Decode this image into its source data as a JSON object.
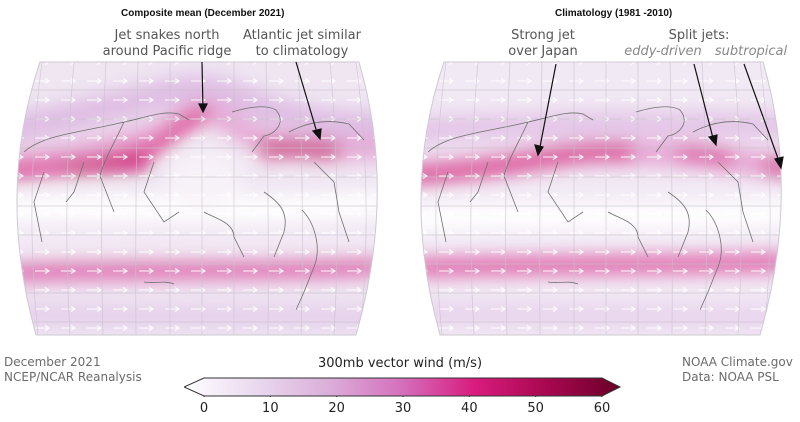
{
  "panels": [
    {
      "title": "Composite mean (December 2021)",
      "annotations": [
        {
          "lines": [
            "Jet snakes north",
            "around Pacific ridge"
          ]
        },
        {
          "lines": [
            "Atlantic jet similar",
            "to climatology"
          ]
        }
      ]
    },
    {
      "title": "Climatology (1981 -2010)",
      "annotations": [
        {
          "lines": [
            "Strong jet",
            "over Japan"
          ]
        },
        {
          "lines": [
            "Split jets:"
          ]
        },
        {
          "lines": [
            "eddy-driven"
          ]
        },
        {
          "lines": [
            "subtropical"
          ]
        }
      ]
    }
  ],
  "colorbar": {
    "title": "300mb vector wind (m/s)",
    "ticks": [
      "0",
      "10",
      "20",
      "30",
      "40",
      "50",
      "60"
    ],
    "min": 0,
    "max": 60,
    "colors": [
      "#ffffff",
      "#e9d9ee",
      "#dbaed9",
      "#d46fbc",
      "#d81c7e",
      "#a8074f",
      "#6a0028"
    ]
  },
  "credits": {
    "left": [
      "December 2021",
      "NCEP/NCAR Reanalysis"
    ],
    "right": [
      "NOAA Climate.gov",
      "Data: NOAA PSL"
    ]
  }
}
